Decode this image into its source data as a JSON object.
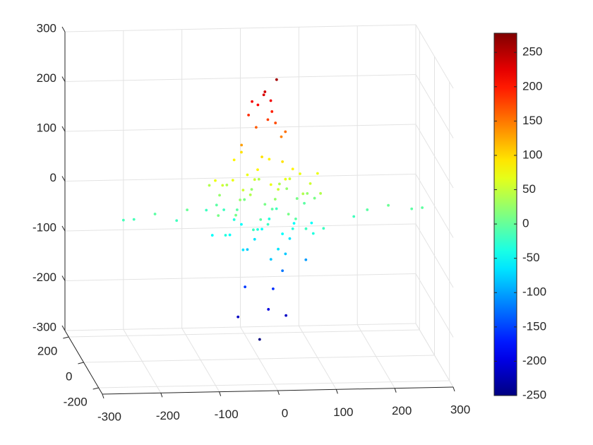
{
  "chart_data": {
    "type": "scatter3d",
    "x": [
      30,
      10,
      8,
      -2,
      -12,
      20,
      22,
      -18,
      15,
      28,
      -5,
      45,
      38,
      -30,
      -36,
      16,
      46,
      1,
      -24,
      24,
      40,
      80,
      -232,
      -214,
      -178,
      -141,
      -123,
      185,
      221,
      261,
      279,
      162,
      -80,
      -80,
      -80,
      -80,
      -80,
      -50,
      -50,
      -50,
      -50,
      -50,
      -20,
      -20,
      -20,
      -20,
      -20,
      -20,
      -20,
      10,
      10,
      10,
      10,
      10,
      10,
      10,
      40,
      40,
      40,
      40,
      40,
      40,
      40,
      70,
      70,
      70,
      70,
      70,
      100,
      100,
      100,
      100,
      100,
      -65,
      -65,
      -65,
      -65,
      -35,
      -35,
      -35,
      -35,
      -35,
      -35,
      -5,
      -5,
      -5,
      -5,
      -5,
      -5,
      25,
      25,
      25,
      25,
      25,
      25,
      55,
      55,
      55,
      55,
      55,
      55,
      85,
      85,
      85,
      85
    ],
    "y": [
      0,
      0,
      0,
      0,
      0,
      0,
      0,
      0,
      0,
      0,
      0,
      0,
      0,
      0,
      0,
      0,
      0,
      0,
      0,
      0,
      0,
      0,
      0,
      0,
      0,
      0,
      0,
      0,
      0,
      0,
      0,
      0,
      0,
      80,
      -80,
      40,
      -40,
      0,
      80,
      -80,
      40,
      -40,
      0,
      80,
      -80,
      40,
      -40,
      0,
      80,
      -80,
      40,
      -40,
      0,
      80,
      -80,
      40,
      -40,
      0,
      80,
      -80,
      40,
      -40,
      0,
      80,
      -80,
      40,
      -40,
      0,
      80,
      -80,
      40,
      -40,
      0,
      -60,
      60,
      20,
      -20,
      -60,
      60,
      20,
      -20,
      -60,
      60,
      20,
      -20,
      -60,
      60,
      20,
      -20,
      -60,
      60,
      20,
      -20,
      -60,
      60,
      20,
      -20,
      -60,
      60,
      20,
      -20,
      -60,
      60,
      20,
      -20
    ],
    "z": [
      260,
      236,
      230,
      210,
      217,
      218,
      196,
      190,
      180,
      173,
      165,
      155,
      145,
      130,
      -215,
      -201,
      -214,
      -261,
      -155,
      -160,
      -124,
      -103,
      -16,
      -15,
      -5,
      -19,
      2,
      -5,
      3,
      -5,
      -3,
      -18,
      -50,
      -20,
      10,
      40,
      70,
      -50,
      -20,
      10,
      40,
      70,
      -80,
      -50,
      -20,
      10,
      40,
      70,
      95,
      -80,
      -50,
      -20,
      10,
      40,
      70,
      95,
      -80,
      -50,
      -20,
      10,
      40,
      70,
      95,
      -50,
      -20,
      10,
      40,
      70,
      -50,
      -20,
      10,
      40,
      70,
      -35,
      -5,
      25,
      55,
      -65,
      -35,
      -5,
      25,
      55,
      85,
      -65,
      -35,
      -5,
      25,
      55,
      85,
      -65,
      -35,
      -5,
      25,
      55,
      85,
      -65,
      -35,
      -5,
      25,
      55,
      85,
      -35,
      -5,
      25,
      55
    ],
    "xlim": [
      -300,
      300
    ],
    "ylim": [
      -250,
      250
    ],
    "zlim": [
      -300,
      300
    ],
    "xticks": [
      -300,
      -200,
      -100,
      0,
      100,
      200,
      300
    ],
    "yticks": [
      -200,
      0,
      200
    ],
    "zticks": [
      -300,
      -200,
      -100,
      0,
      100,
      200,
      300
    ],
    "grid": true,
    "colorbar": {
      "colormap": "jet",
      "clim": [
        -250,
        278
      ],
      "ticks": [
        -250,
        -200,
        -150,
        -100,
        -50,
        0,
        50,
        100,
        150,
        200,
        250
      ]
    }
  }
}
